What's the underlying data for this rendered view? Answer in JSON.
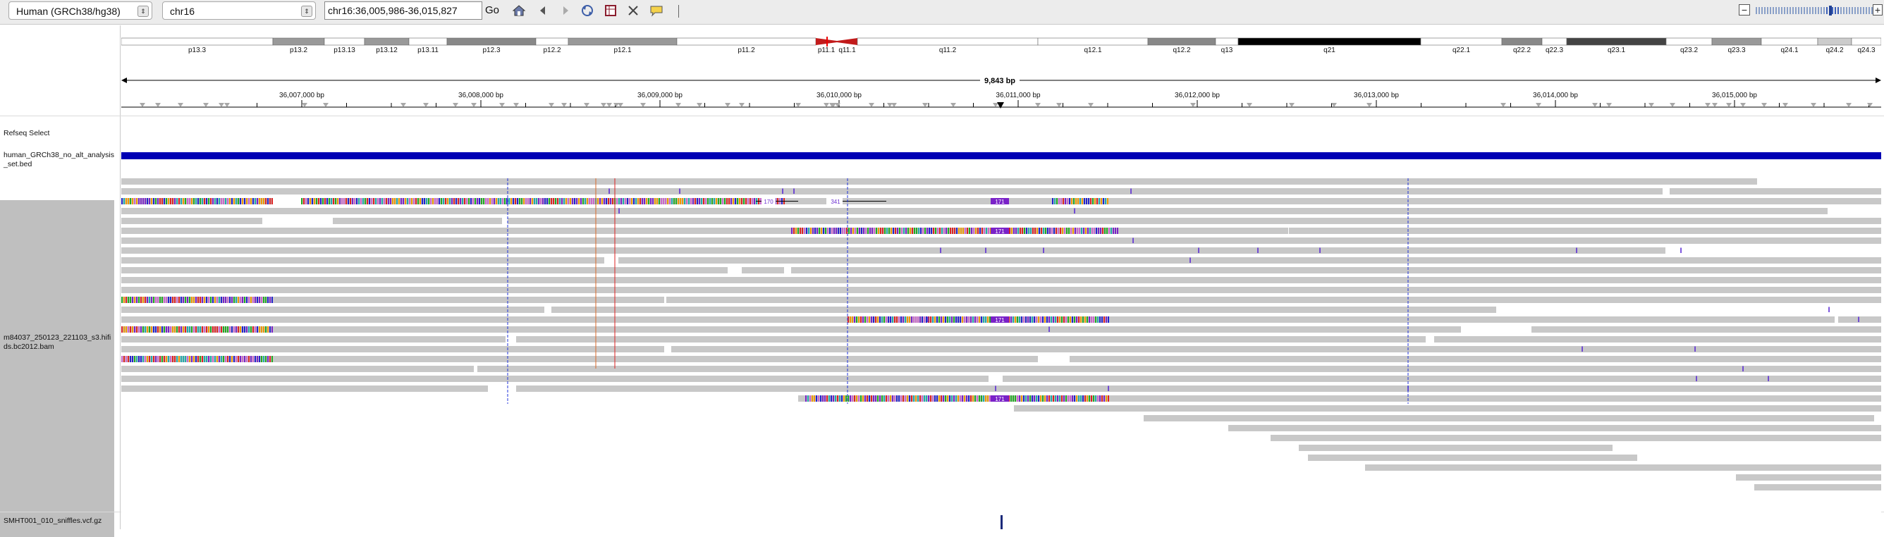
{
  "toolbar": {
    "genome": "Human (GRCh38/hg38)",
    "chromosome": "chr16",
    "locus": "chr16:36,005,986-36,015,827",
    "go_label": "Go",
    "zoom_minus": "−",
    "zoom_plus": "+",
    "icons": [
      "home-icon",
      "back-icon",
      "forward-icon",
      "refresh-icon",
      "ruler-icon",
      "fit-icon",
      "popup-icon",
      "divider"
    ]
  },
  "ideogram": {
    "bands": [
      "p13.3",
      "p13.2",
      "p13.13",
      "p13.12",
      "p13.11",
      "p12.3",
      "p12.2",
      "p12.1",
      "p11.2",
      "p11.1",
      "q11.1",
      "q11.2",
      "q12.1",
      "q12.2",
      "q13",
      "q21",
      "q22.1",
      "q22.2",
      "q22.3",
      "q23.1",
      "q23.2",
      "q23.3",
      "q24.1",
      "q24.2",
      "q24.3"
    ]
  },
  "ruler": {
    "span": "9,843 bp",
    "ticks": [
      "36,007,000 bp",
      "36,008,000 bp",
      "36,009,000 bp",
      "36,010,000 bp",
      "36,011,000 bp",
      "36,012,000 bp",
      "36,013,000 bp",
      "36,014,000 bp",
      "36,015,000 bp"
    ]
  },
  "tracks": {
    "refseq": "Refseq Select",
    "bed_line1": "human_GRCh38_no_alt_analysis",
    "bed_line2": "_set.bed",
    "bam_line1": "m84037_250123_221103_s3.hifi",
    "bam_line2": "ds.bc2012.bam",
    "vcf": "SMHT001_010_sniffles.vcf.gz"
  },
  "insertion_labels": [
    "170",
    "341",
    "171",
    "171",
    "171",
    "171"
  ],
  "colors": {
    "read": "#c8c8c8",
    "bed_bar": "#0000b4",
    "insertion": "#7a22c8",
    "centromere": "#d0191b"
  }
}
